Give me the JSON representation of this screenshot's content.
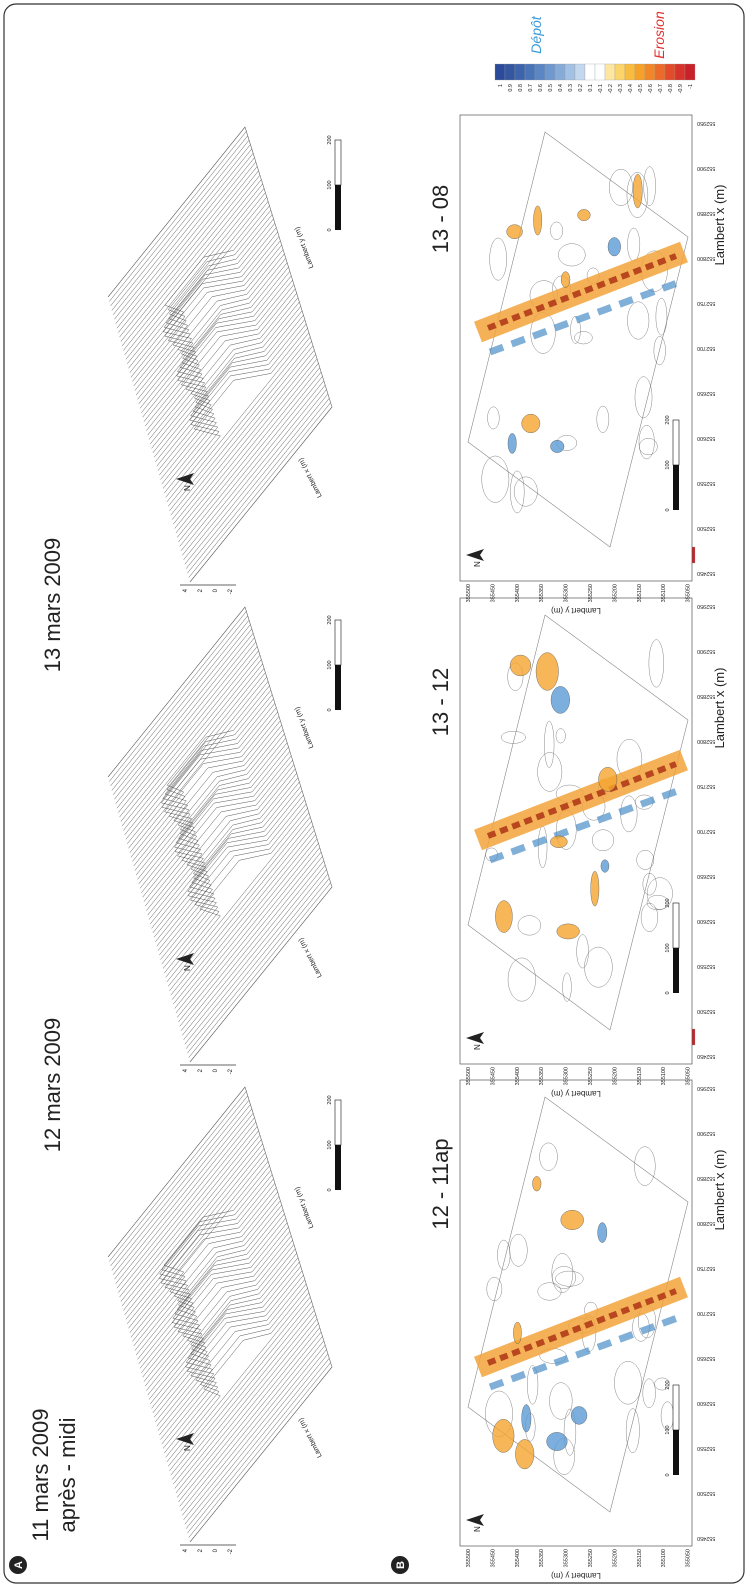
{
  "panel_labels": {
    "a": "A",
    "b": "B"
  },
  "surfaces": [
    {
      "title": [
        "11 mars 2009",
        "après - midi"
      ],
      "z_ticks": [
        4,
        2,
        0,
        -2
      ],
      "x_axis_label": "Lambert x (m)",
      "y_axis_label": "Lambert y (m)",
      "north": "N",
      "scale_ticks": [
        0,
        100,
        200
      ]
    },
    {
      "title": [
        "12 mars 2009"
      ],
      "z_ticks": [
        4,
        2,
        0,
        -2
      ],
      "x_axis_label": "Lambert x (m)",
      "y_axis_label": "Lambert y (m)",
      "north": "N",
      "scale_ticks": [
        0,
        100,
        200
      ]
    },
    {
      "title": [
        "13 mars 2009"
      ],
      "z_ticks": [
        4,
        2,
        0,
        -2
      ],
      "x_axis_label": "Lambert x (m)",
      "y_axis_label": "Lambert y (m)",
      "north": "N",
      "scale_ticks": [
        0,
        100,
        200
      ]
    }
  ],
  "difference_maps": [
    {
      "title": "12 - 11ap",
      "x_axis_label": "Lambert x (m)",
      "y_axis_label": "Lambert y (m)",
      "x_ticks": [
        552450,
        552500,
        552550,
        552600,
        552650,
        552700,
        552750,
        552800,
        552850,
        552900,
        552950
      ],
      "y_ticks": [
        355500,
        355450,
        355400,
        355350,
        355300,
        355250,
        355200,
        355150,
        355100,
        355050
      ],
      "north": "N",
      "scale_ticks": [
        0,
        100,
        200
      ],
      "colorbar": {
        "ticks": [
          1,
          0.9,
          0.8,
          0.7,
          0.6,
          0.5,
          0.4,
          0.3,
          0.2,
          0.1,
          -0.1,
          -0.2,
          -0.3,
          -0.4,
          -0.5,
          -0.6,
          -0.7,
          -0.8,
          -0.9,
          -1
        ],
        "colors": [
          "#2c4a9a",
          "#33569f",
          "#3d64ab",
          "#4a74b8",
          "#5a86c4",
          "#6f98cf",
          "#86abd9",
          "#a2c1e4",
          "#c3d8ee",
          "#ffffff",
          "#ffffff",
          "#fde7a0",
          "#fcd46a",
          "#f9bc3f",
          "#f6a22a",
          "#f2872a",
          "#ec6a2a",
          "#e24c2a",
          "#d8332a",
          "#c9202a"
        ],
        "deposit_label": "Dépôt",
        "erosion_label": "Erosion"
      }
    },
    {
      "title": "13 - 12",
      "x_axis_label": "Lambert x (m)",
      "y_axis_label": "Lambert y (m)",
      "x_ticks": [
        552450,
        552500,
        552550,
        552600,
        552650,
        552700,
        552750,
        552800,
        552850,
        552900,
        552950
      ],
      "y_ticks": [
        355500,
        355450,
        355400,
        355350,
        355300,
        355250,
        355200,
        355150,
        355100,
        355050
      ],
      "north": "N",
      "scale_ticks": [
        0,
        100,
        200
      ],
      "colorbar": {
        "ticks": [
          1,
          0.9,
          0.8,
          0.7,
          0.6,
          0.5,
          0.4,
          0.3,
          0.2,
          0.1,
          -0.1,
          -0.2,
          -0.3,
          -0.4,
          -0.5,
          -0.6,
          -0.7,
          -0.8,
          -0.9,
          -1
        ],
        "colors": [
          "#2c4a9a",
          "#33569f",
          "#3d64ab",
          "#4a74b8",
          "#5a86c4",
          "#6f98cf",
          "#86abd9",
          "#a2c1e4",
          "#c3d8ee",
          "#ffffff",
          "#ffffff",
          "#fde7a0",
          "#fcd46a",
          "#f9bc3f",
          "#f6a22a",
          "#f2872a",
          "#ec6a2a",
          "#e24c2a",
          "#d8332a",
          "#c9202a"
        ],
        "deposit_label": "Dépôt",
        "erosion_label": "Erosion"
      }
    },
    {
      "title": "13 - 08",
      "x_axis_label": "Lambert x (m)",
      "y_axis_label": "Lambert y (m)",
      "x_ticks": [
        552450,
        552500,
        552550,
        552600,
        552650,
        552700,
        552750,
        552800,
        552850,
        552900,
        552950
      ],
      "y_ticks": [
        355500,
        355450,
        355400,
        355350,
        355300,
        355250,
        355200,
        355150,
        355100,
        355050
      ],
      "north": "N",
      "scale_ticks": [
        0,
        100,
        200
      ],
      "colorbar": {
        "ticks": [
          1,
          0.9,
          0.8,
          0.7,
          0.6,
          0.5,
          0.4,
          0.3,
          0.2,
          0.1,
          -0.1,
          -0.2,
          -0.3,
          -0.4,
          -0.5,
          -0.6,
          -0.7,
          -0.8,
          -0.9,
          -1
        ],
        "colors": [
          "#2c4a9a",
          "#33569f",
          "#3d64ab",
          "#4a74b8",
          "#5a86c4",
          "#6f98cf",
          "#86abd9",
          "#a2c1e4",
          "#c3d8ee",
          "#ffffff",
          "#ffffff",
          "#fde7a0",
          "#fcd46a",
          "#f9bc3f",
          "#f6a22a",
          "#f2872a",
          "#ec6a2a",
          "#e24c2a",
          "#d8332a",
          "#c9202a"
        ],
        "deposit_label": "Dépôt",
        "erosion_label": "Erosion"
      }
    }
  ]
}
